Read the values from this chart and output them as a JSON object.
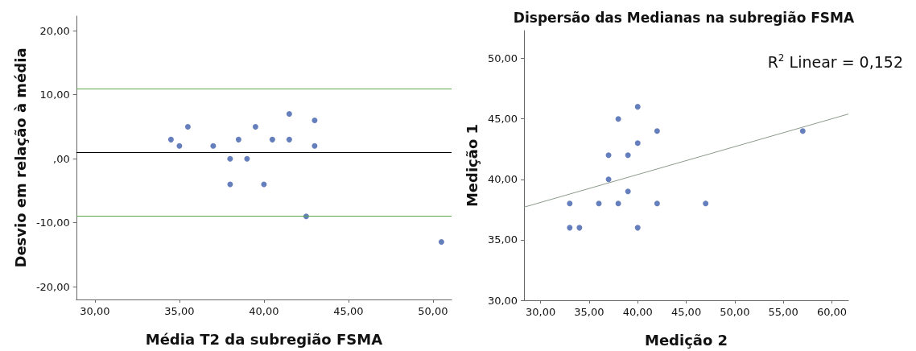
{
  "chart_data": [
    {
      "type": "scatter",
      "xlabel": "Média T2 da subregião FSMA",
      "ylabel": "Desvio em relação à média",
      "xlim": [
        28.9,
        51.1
      ],
      "ylim": [
        -22,
        22.3
      ],
      "xticks": [
        {
          "value": 30,
          "label": "30,00"
        },
        {
          "value": 35,
          "label": "35,00"
        },
        {
          "value": 40,
          "label": "40,00"
        },
        {
          "value": 45,
          "label": "45,00"
        },
        {
          "value": 50,
          "label": "50,00"
        }
      ],
      "yticks": [
        {
          "value": -20,
          "label": "-20,00"
        },
        {
          "value": -10,
          "label": "-10,00"
        },
        {
          "value": 0,
          "label": ",00"
        },
        {
          "value": 10,
          "label": "10,00"
        },
        {
          "value": 20,
          "label": "20,00"
        }
      ],
      "grid": false,
      "series": [
        {
          "marker": "circle",
          "color": "#3f5eab",
          "x": [
            34.5,
            35,
            35.5,
            37,
            38,
            38,
            38.5,
            39,
            39.5,
            40,
            40.5,
            41.5,
            41.5,
            42.5,
            43,
            43,
            50.5
          ],
          "values": [
            3,
            2,
            5,
            2,
            0,
            -4,
            3,
            0,
            5,
            -4,
            3,
            7,
            3,
            -9,
            6,
            2,
            -13
          ]
        }
      ],
      "ref_lines": [
        {
          "axis": "y",
          "value": 11,
          "color": "#5aa84a"
        },
        {
          "axis": "y",
          "value": 1,
          "color": "#000000"
        },
        {
          "axis": "y",
          "value": -9,
          "color": "#5aa84a"
        }
      ]
    },
    {
      "type": "scatter",
      "title": "Dispersão das Medianas na subregião FSMA",
      "xlabel": "Medição 2",
      "ylabel": "Medição 1",
      "xlim": [
        28.3,
        61.7
      ],
      "ylim": [
        30,
        52.3
      ],
      "xticks": [
        {
          "value": 30,
          "label": "30,00"
        },
        {
          "value": 35,
          "label": "35,00"
        },
        {
          "value": 40,
          "label": "40,00"
        },
        {
          "value": 45,
          "label": "45,00"
        },
        {
          "value": 50,
          "label": "50,00"
        },
        {
          "value": 55,
          "label": "55,00"
        },
        {
          "value": 60,
          "label": "60,00"
        }
      ],
      "yticks": [
        {
          "value": 30,
          "label": "30,00"
        },
        {
          "value": 35,
          "label": "35,00"
        },
        {
          "value": 40,
          "label": "40,00"
        },
        {
          "value": 45,
          "label": "45,00"
        },
        {
          "value": 50,
          "label": "50,00"
        }
      ],
      "grid": false,
      "annotations": [
        "R$^{2}$ Linear = 0,152"
      ],
      "series": [
        {
          "marker": "circle",
          "color": "#3f5eab",
          "x": [
            33,
            33,
            34,
            36,
            37,
            37,
            38,
            38,
            39,
            39,
            40,
            40,
            40,
            42,
            42,
            47,
            57
          ],
          "values": [
            38,
            36,
            36,
            38,
            40,
            42,
            45,
            38,
            42,
            39,
            46,
            43,
            36,
            44,
            38,
            38,
            44
          ]
        },
        {
          "type": "line",
          "color": "#8a9a8a",
          "x": [
            28.3,
            61.7
          ],
          "values": [
            37.7,
            45.4
          ]
        }
      ]
    }
  ]
}
